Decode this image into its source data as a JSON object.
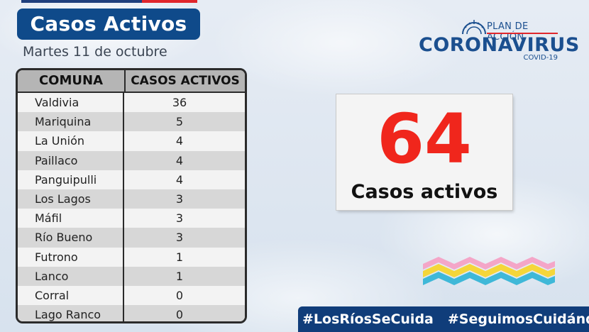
{
  "header": {
    "title": "Casos Activos",
    "date": "Martes 11 de octubre"
  },
  "table": {
    "columns": [
      "COMUNA",
      "CASOS ACTIVOS"
    ],
    "rows": [
      {
        "comuna": "Valdivia",
        "casos": "36"
      },
      {
        "comuna": "Mariquina",
        "casos": "5"
      },
      {
        "comuna": "La Unión",
        "casos": "4"
      },
      {
        "comuna": "Paillaco",
        "casos": "4"
      },
      {
        "comuna": "Panguipulli",
        "casos": "4"
      },
      {
        "comuna": "Los Lagos",
        "casos": "3"
      },
      {
        "comuna": "Máfil",
        "casos": "3"
      },
      {
        "comuna": "Río Bueno",
        "casos": "3"
      },
      {
        "comuna": "Futrono",
        "casos": "1"
      },
      {
        "comuna": "Lanco",
        "casos": "1"
      },
      {
        "comuna": "Corral",
        "casos": "0"
      },
      {
        "comuna": "Lago Ranco",
        "casos": "0"
      }
    ]
  },
  "brand": {
    "top": "PLAN DE ACCIÓN",
    "main": "CORONAVIRUS",
    "sub": "COVID-19",
    "color": "#1b4f8f"
  },
  "summary": {
    "total": "64",
    "label": "Casos activos",
    "number_color": "#f0261c"
  },
  "footer": {
    "hashtags": [
      "#LosRíosSeCuida",
      "#SeguimosCuidándonos"
    ]
  },
  "icons": [
    "dome-icon",
    "waves-logo-icon"
  ]
}
